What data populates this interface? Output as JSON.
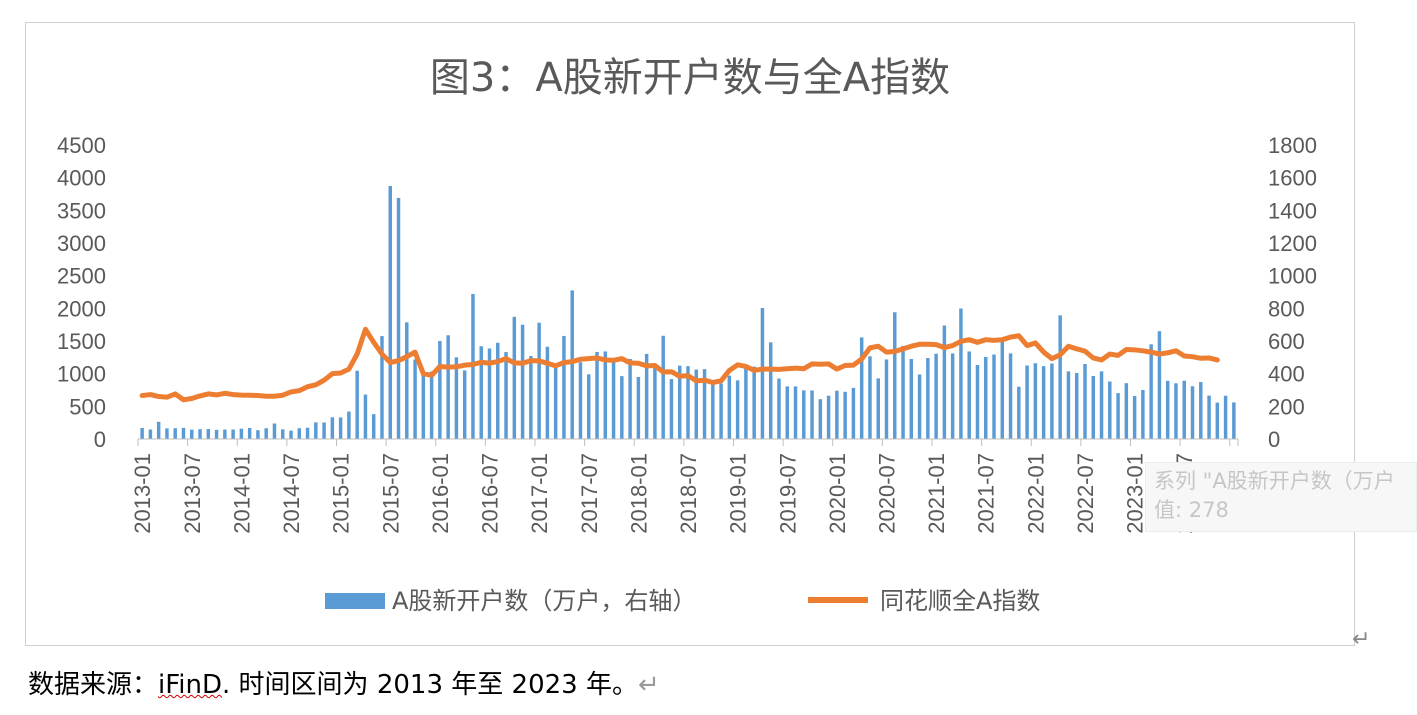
{
  "chart_data": {
    "type": "bar+line",
    "title": "图3：A股新开户数与全A指数",
    "left_axis": {
      "min": 0,
      "max": 4500,
      "step": 500,
      "ticks": [
        "0",
        "500",
        "1000",
        "1500",
        "2000",
        "2500",
        "3000",
        "3500",
        "4000",
        "4500"
      ]
    },
    "right_axis": {
      "min": 0,
      "max": 1800,
      "step": 200,
      "ticks": [
        "0",
        "200",
        "400",
        "600",
        "800",
        "1000",
        "1200",
        "1400",
        "1600",
        "1800"
      ]
    },
    "x_tick_labels": [
      "2013-01",
      "2013-07",
      "2014-01",
      "2014-07",
      "2015-01",
      "2015-07",
      "2016-01",
      "2016-07",
      "2017-01",
      "2017-07",
      "2018-01",
      "2018-07",
      "2019-01",
      "2019-07",
      "2020-01",
      "2020-07",
      "2021-01",
      "2021-07",
      "2022-01",
      "2022-07",
      "2023-01",
      "2023-07"
    ],
    "start_month": "2013-01",
    "legend": "bottom",
    "series": [
      {
        "name": "A股新开户数（万户，右轴）",
        "type": "bar",
        "color": "#5b9bd5",
        "values": [
          67,
          58,
          105,
          65,
          66,
          68,
          57,
          60,
          61,
          56,
          58,
          58,
          63,
          67,
          54,
          66,
          95,
          59,
          51,
          66,
          69,
          102,
          101,
          133,
          132,
          168,
          418,
          272,
          152,
          630,
          1549,
          1476,
          714,
          487,
          410,
          413,
          600,
          635,
          500,
          420,
          888,
          568,
          554,
          589,
          532,
          748,
          700,
          508,
          712,
          565,
          440,
          631,
          910,
          470,
          396,
          533,
          536,
          493,
          385,
          490,
          380,
          521,
          450,
          632,
          367,
          449,
          446,
          425,
          428,
          350,
          340,
          388,
          359,
          446,
          443,
          802,
          592,
          370,
          322,
          322,
          298,
          297,
          244,
          265,
          296,
          289,
          313,
          622,
          506,
          371,
          487,
          776,
          570,
          490,
          395,
          496,
          522,
          695,
          524,
          799,
          536,
          453,
          502,
          517,
          605,
          524,
          320,
          450,
          464,
          446,
          462,
          757,
          414,
          404,
          459,
          386,
          414,
          352,
          281,
          342,
          263,
          300,
          580,
          660,
          356,
          341,
          357,
          323,
          349,
          266,
          223,
          265,
          224
        ]
      },
      {
        "name": "同花顺全A指数",
        "type": "line",
        "color": "#ed7d31",
        "values": [
          665,
          680,
          650,
          640,
          690,
          600,
          620,
          660,
          690,
          675,
          700,
          680,
          672,
          670,
          665,
          655,
          655,
          670,
          720,
          740,
          800,
          830,
          900,
          1000,
          1010,
          1070,
          1300,
          1680,
          1480,
          1300,
          1170,
          1200,
          1260,
          1330,
          1000,
          975,
          1110,
          1100,
          1105,
          1130,
          1140,
          1175,
          1160,
          1185,
          1230,
          1165,
          1160,
          1200,
          1195,
          1160,
          1120,
          1170,
          1185,
          1220,
          1230,
          1240,
          1210,
          1205,
          1230,
          1165,
          1160,
          1120,
          1125,
          1025,
          1030,
          960,
          970,
          890,
          900,
          865,
          890,
          1050,
          1135,
          1110,
          1050,
          1070,
          1070,
          1065,
          1075,
          1085,
          1075,
          1150,
          1145,
          1150,
          1070,
          1125,
          1130,
          1225,
          1395,
          1420,
          1330,
          1340,
          1380,
          1420,
          1450,
          1450,
          1445,
          1400,
          1430,
          1495,
          1520,
          1480,
          1520,
          1510,
          1520,
          1560,
          1580,
          1430,
          1470,
          1330,
          1230,
          1290,
          1420,
          1380,
          1345,
          1240,
          1210,
          1300,
          1280,
          1370,
          1365,
          1350,
          1330,
          1300,
          1320,
          1350,
          1270,
          1260,
          1235,
          1240,
          1210
        ]
      }
    ]
  },
  "tooltip": {
    "line1": "系列 \"A股新开户数（万户",
    "line2": "值: 278"
  },
  "source": {
    "prefix": "数据来源：",
    "ifind": "iFinD",
    "rest": ". 时间区间为 2013 年至 2023 年。"
  }
}
